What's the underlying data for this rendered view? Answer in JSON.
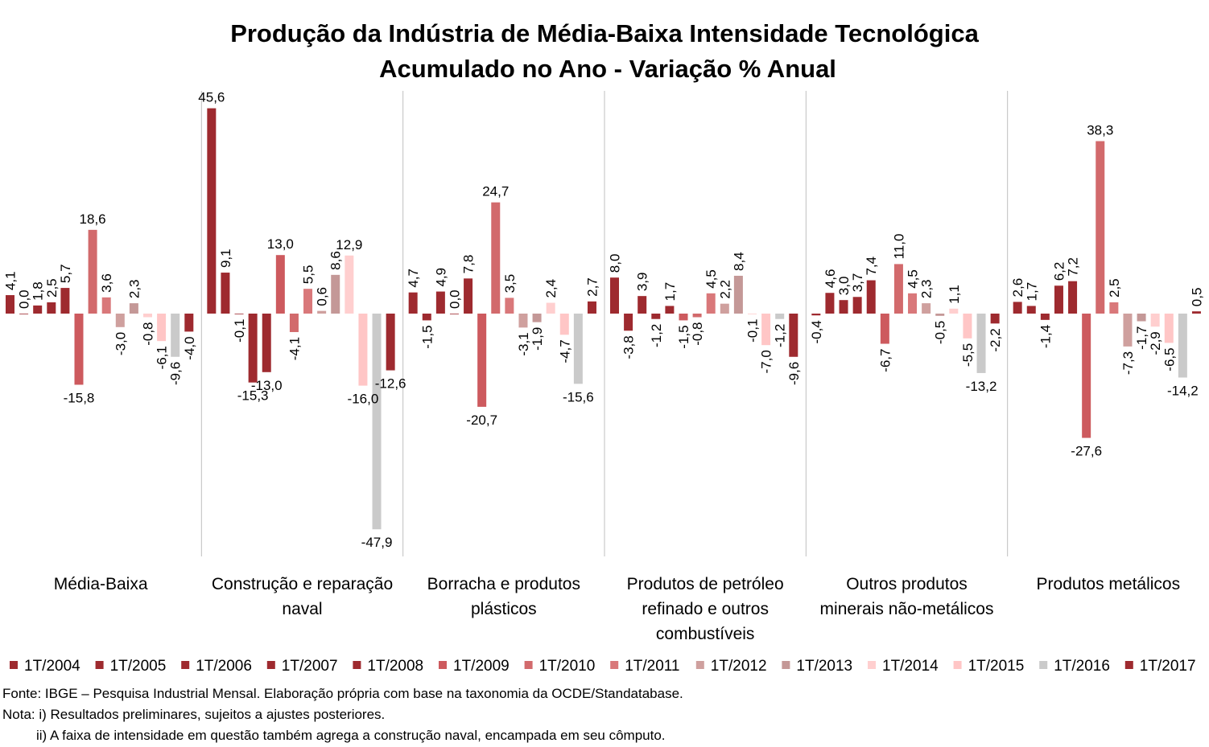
{
  "chart_data": {
    "type": "bar",
    "title": "Produção da Indústria de Média-Baixa Intensidade Tecnológica",
    "subtitle": "Acumulado no Ano - Variação % Anual",
    "categories": [
      "Média-Baixa",
      "Construção e reparação naval",
      "Borracha e produtos plásticos",
      "Produtos de petróleo refinado e outros combustíveis",
      "Outros produtos minerais não-metálicos",
      "Produtos metálicos"
    ],
    "category_lines": [
      [
        "Média-Baixa"
      ],
      [
        "Construção e reparação",
        "naval"
      ],
      [
        "Borracha e produtos",
        "plásticos"
      ],
      [
        "Produtos de petróleo",
        "refinado e outros",
        "combustíveis"
      ],
      [
        "Outros produtos",
        "minerais não-metálicos"
      ],
      [
        "Produtos metálicos"
      ]
    ],
    "ylim": [
      -50,
      50
    ],
    "grid": false,
    "legend_position": "bottom",
    "series": [
      {
        "name": "1T/2004",
        "color": "#9e2a2f",
        "values": [
          4.1,
          45.6,
          4.7,
          8.0,
          -0.4,
          2.6
        ],
        "labels": [
          "4,1",
          "45,6",
          "4,7",
          "8,0",
          "-0,4",
          "2,6"
        ]
      },
      {
        "name": "1T/2005",
        "color": "#9e2a2f",
        "values": [
          0.0,
          9.1,
          -1.5,
          -3.8,
          4.6,
          1.7
        ],
        "labels": [
          "0,0",
          "9,1",
          "-1,5",
          "-3,8",
          "4,6",
          "1,7"
        ]
      },
      {
        "name": "1T/2006",
        "color": "#9e2a2f",
        "values": [
          1.8,
          -0.1,
          4.9,
          3.9,
          3.0,
          -1.4
        ],
        "labels": [
          "1,8",
          "-0,1",
          "4,9",
          "3,9",
          "3,0",
          "-1,4"
        ]
      },
      {
        "name": "1T/2007",
        "color": "#9e2a2f",
        "values": [
          2.5,
          -15.3,
          0.0,
          -1.2,
          3.7,
          6.2
        ],
        "labels": [
          "2,5",
          "-15,3",
          "0,0",
          "-1,2",
          "3,7",
          "6,2"
        ]
      },
      {
        "name": "1T/2008",
        "color": "#9e2a2f",
        "values": [
          5.7,
          -13.0,
          7.8,
          1.7,
          7.4,
          7.2
        ],
        "labels": [
          "5,7",
          "-13,0",
          "7,8",
          "1,7",
          "7,4",
          "7,2"
        ]
      },
      {
        "name": "1T/2009",
        "color": "#cd5a5e",
        "values": [
          -15.8,
          13.0,
          -20.7,
          -1.5,
          -6.7,
          -27.6
        ],
        "labels": [
          "-15,8",
          "13,0",
          "-20,7",
          "-1,5",
          "-6,7",
          "-27,6"
        ]
      },
      {
        "name": "1T/2010",
        "color": "#d26a6c",
        "values": [
          18.6,
          -4.1,
          24.7,
          -0.8,
          11.0,
          38.3
        ],
        "labels": [
          "18,6",
          "-4,1",
          "24,7",
          "-0,8",
          "11,0",
          "38,3"
        ]
      },
      {
        "name": "1T/2011",
        "color": "#d9787a",
        "values": [
          3.6,
          5.5,
          3.5,
          4.5,
          4.5,
          2.5
        ],
        "labels": [
          "3,6",
          "5,5",
          "3,5",
          "4,5",
          "4,5",
          "2,5"
        ]
      },
      {
        "name": "1T/2012",
        "color": "#cfa09e",
        "values": [
          -3.0,
          0.6,
          -3.1,
          2.2,
          2.3,
          -7.3
        ],
        "labels": [
          "-3,0",
          "0,6",
          "-3,1",
          "2,2",
          "2,3",
          "-7,3"
        ]
      },
      {
        "name": "1T/2013",
        "color": "#c49897",
        "values": [
          2.3,
          8.6,
          -1.9,
          8.4,
          -0.5,
          -1.7
        ],
        "labels": [
          "2,3",
          "8,6",
          "-1,9",
          "8,4",
          "-0,5",
          "-1,7"
        ]
      },
      {
        "name": "1T/2014",
        "color": "#ffcfcf",
        "values": [
          -0.8,
          12.9,
          2.4,
          -0.1,
          1.1,
          -2.9
        ],
        "labels": [
          "-0,8",
          "12,9",
          "2,4",
          "-0,1",
          "1,1",
          "-2,9"
        ]
      },
      {
        "name": "1T/2015",
        "color": "#ffc6c6",
        "values": [
          -6.1,
          -16.0,
          -4.7,
          -7.0,
          -5.5,
          -6.5
        ],
        "labels": [
          "-6,1",
          "-16,0",
          "-4,7",
          "-7,0",
          "-5,5",
          "-6,5"
        ]
      },
      {
        "name": "1T/2016",
        "color": "#cacaca",
        "values": [
          -9.6,
          -47.9,
          -15.6,
          -1.2,
          -13.2,
          -14.2
        ],
        "labels": [
          "-9,6",
          "-47,9",
          "-15,6",
          "-1,2",
          "-13,2",
          "-14,2"
        ]
      },
      {
        "name": "1T/2017",
        "color": "#9e2a2f",
        "values": [
          -4.0,
          -12.6,
          2.7,
          -9.6,
          -2.2,
          0.5
        ],
        "labels": [
          "-4,0",
          "-12,6",
          "2,7",
          "-9,6",
          "-2,2",
          "0,5"
        ]
      }
    ]
  },
  "notes": {
    "source": "Fonte: IBGE – Pesquisa Industrial Mensal. Elaboração própria com base na taxonomia da OCDE/Standatabase.",
    "note1": "Nota: i) Resultados preliminares, sujeitos a ajustes posteriores.",
    "note2": "ii) A faixa de intensidade em questão também agrega a construção naval, encampada em seu cômputo."
  }
}
